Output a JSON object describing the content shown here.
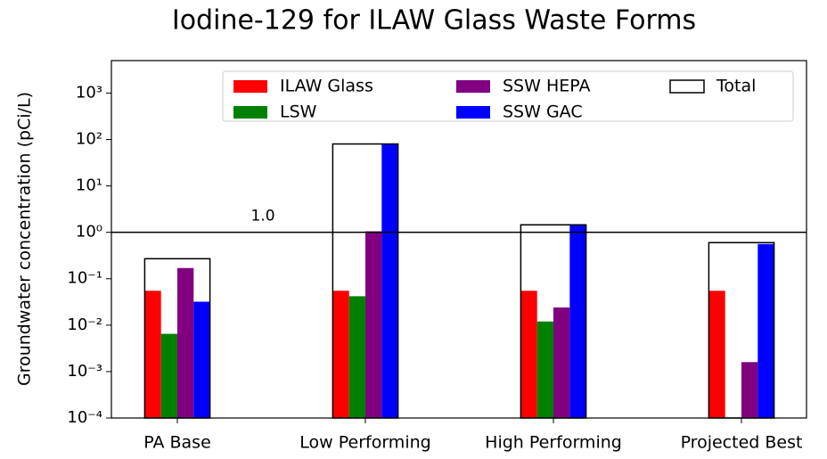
{
  "chart_data": {
    "type": "bar",
    "title": "Iodine-129 for ILAW Glass Waste Forms",
    "y_label": "Groundwater concentration (pCi/L)",
    "categories": [
      "PA Base",
      "Low Performing",
      "High Performing",
      "Projected Best"
    ],
    "series": [
      {
        "name": "ILAW Glass",
        "color": "#ff0000",
        "values": [
          0.055,
          0.055,
          0.055,
          0.055
        ]
      },
      {
        "name": "LSW",
        "color": "#008000",
        "values": [
          0.0065,
          0.042,
          0.012,
          null
        ]
      },
      {
        "name": "SSW HEPA",
        "color": "#800080",
        "values": [
          0.17,
          1.05,
          0.024,
          0.0016
        ]
      },
      {
        "name": "SSW GAC",
        "color": "#0000ff",
        "values": [
          0.032,
          80,
          1.4,
          0.56
        ]
      }
    ],
    "total": {
      "name": "Total",
      "color": "#000000",
      "values": [
        0.27,
        80,
        1.45,
        0.6
      ]
    },
    "hline": {
      "value": 1.0,
      "label": "1.0"
    },
    "log_scale": true,
    "ylim": [
      0.0001,
      5000
    ],
    "yticks": [
      {
        "value": 0.0001,
        "label": "10⁻⁴"
      },
      {
        "value": 0.001,
        "label": "10⁻³"
      },
      {
        "value": 0.01,
        "label": "10⁻²"
      },
      {
        "value": 0.1,
        "label": "10⁻¹"
      },
      {
        "value": 1,
        "label": "10⁰"
      },
      {
        "value": 10,
        "label": "10¹"
      },
      {
        "value": 100,
        "label": "10²"
      },
      {
        "value": 1000,
        "label": "10³"
      }
    ],
    "legend": "upper right"
  }
}
